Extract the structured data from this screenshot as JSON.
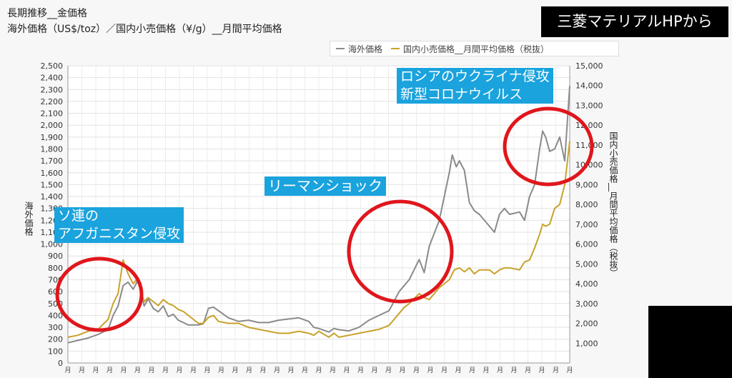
{
  "header": {
    "title": "長期推移__金価格",
    "subtitle": "海外価格（US$/toz）／国内小売価格（¥/g）__月間平均価格",
    "brand": "三菱マテリアルHPから"
  },
  "legend": [
    {
      "label": "海外価格",
      "color": "#8a8a8a"
    },
    {
      "label": "国内小売価格__月間平均価格（税抜）",
      "color": "#c8a22a"
    }
  ],
  "annotations": [
    {
      "lines": [
        "ソ連の",
        "アフガニスタン侵攻"
      ]
    },
    {
      "lines": [
        "リーマンショック"
      ]
    },
    {
      "lines": [
        "ロシアのウクライナ侵攻",
        "新型コロナウイルス"
      ]
    }
  ],
  "highlight_color": "#e0161c",
  "chart_data": {
    "type": "line",
    "ylabel": "海外価格",
    "y2label": "国内小売価格__月間平均価格（税抜）",
    "ylim": [
      0,
      2500
    ],
    "y2lim": [
      0,
      15000
    ],
    "yticks": [
      "0",
      "100",
      "200",
      "300",
      "400",
      "500",
      "600",
      "700",
      "800",
      "900",
      "1,000",
      "1,100",
      "1,200",
      "1,300",
      "1,400",
      "1,500",
      "1,600",
      "1,700",
      "1,800",
      "1,900",
      "2,000",
      "2,100",
      "2,200",
      "2,300",
      "2,400",
      "2,500"
    ],
    "y2ticks": [
      "1,000",
      "2,000",
      "3,000",
      "4,000",
      "5,000",
      "6,000",
      "7,000",
      "8,000",
      "9,000",
      "10,000",
      "11,000",
      "12,000",
      "13,000",
      "14,000",
      "15,000"
    ],
    "xlim": [
      1973,
      2023
    ],
    "xticks": [
      "月",
      "月",
      "月",
      "月",
      "月",
      "月",
      "月",
      "月",
      "月",
      "月",
      "月",
      "月",
      "月",
      "月",
      "月",
      "月",
      "月",
      "月",
      "月",
      "月",
      "月",
      "月",
      "月",
      "月",
      "月",
      "月",
      "月",
      "月",
      "月",
      "月",
      "月",
      "月",
      "月",
      "月",
      "月",
      "月",
      "月"
    ],
    "grid": true,
    "legend_position": "top-right",
    "series": [
      {
        "name": "海外価格",
        "axis": "left",
        "color": "#8a8a8a",
        "x": [
          1973,
          1974,
          1975,
          1976,
          1977,
          1977.5,
          1978,
          1978.5,
          1979,
          1979.5,
          1980,
          1980.3,
          1980.6,
          1981,
          1981.5,
          1982,
          1982.5,
          1983,
          1983.5,
          1984,
          1984.5,
          1985,
          1986,
          1986.5,
          1987,
          1987.5,
          1988,
          1989,
          1990,
          1991,
          1992,
          1993,
          1994,
          1995,
          1996,
          1997,
          1997.5,
          1998,
          1999,
          1999.5,
          2000,
          2001,
          2002,
          2003,
          2004,
          2005,
          2006,
          2006.5,
          2007,
          2008,
          2008.5,
          2009,
          2010,
          2011,
          2011.3,
          2011.7,
          2012,
          2012.5,
          2013,
          2013.5,
          2014,
          2015,
          2015.5,
          2016,
          2016.5,
          2017,
          2018,
          2018.5,
          2019,
          2019.5,
          2020,
          2020.3,
          2020.6,
          2021,
          2021.5,
          2022,
          2022.5,
          2023
        ],
        "values": [
          170,
          190,
          210,
          240,
          280,
          400,
          480,
          650,
          680,
          620,
          700,
          580,
          480,
          540,
          460,
          430,
          480,
          390,
          410,
          360,
          340,
          320,
          320,
          330,
          460,
          470,
          440,
          380,
          350,
          360,
          340,
          340,
          360,
          370,
          380,
          350,
          300,
          290,
          260,
          290,
          280,
          270,
          300,
          360,
          400,
          440,
          600,
          650,
          700,
          870,
          760,
          980,
          1200,
          1600,
          1750,
          1650,
          1700,
          1620,
          1350,
          1280,
          1250,
          1150,
          1100,
          1250,
          1300,
          1250,
          1270,
          1200,
          1400,
          1500,
          1800,
          1950,
          1900,
          1780,
          1800,
          1900,
          1700,
          2330
        ]
      },
      {
        "name": "国内小売価格__月間平均価格（税抜）",
        "axis": "right",
        "color": "#c8a22a",
        "x": [
          1973,
          1974,
          1975,
          1976,
          1977,
          1977.5,
          1978,
          1978.5,
          1979,
          1979.5,
          1980,
          1980.3,
          1980.6,
          1981,
          1981.5,
          1982,
          1982.5,
          1983,
          1983.5,
          1984,
          1984.5,
          1985,
          1986,
          1986.5,
          1987,
          1987.5,
          1988,
          1989,
          1990,
          1991,
          1992,
          1993,
          1994,
          1995,
          1996,
          1997,
          1997.5,
          1998,
          1999,
          1999.5,
          2000,
          2001,
          2002,
          2003,
          2004,
          2005,
          2006,
          2006.5,
          2007,
          2008,
          2008.5,
          2009,
          2010,
          2011,
          2011.5,
          2012,
          2012.5,
          2013,
          2013.5,
          2014,
          2015,
          2015.5,
          2016,
          2016.5,
          2017,
          2018,
          2018.5,
          2019,
          2019.5,
          2020,
          2020.3,
          2020.6,
          2021,
          2021.5,
          2022,
          2022.5,
          2023
        ],
        "values": [
          1300,
          1400,
          1600,
          1700,
          2200,
          3000,
          3500,
          5200,
          4500,
          4000,
          4300,
          3600,
          3100,
          3300,
          3100,
          2900,
          3200,
          3000,
          2900,
          2700,
          2600,
          2400,
          2000,
          2000,
          2300,
          2400,
          2100,
          2000,
          2000,
          1800,
          1700,
          1600,
          1500,
          1500,
          1600,
          1500,
          1400,
          1600,
          1300,
          1500,
          1300,
          1400,
          1500,
          1600,
          1700,
          1900,
          2500,
          2800,
          3000,
          3500,
          3300,
          3200,
          3800,
          4200,
          4700,
          4800,
          4600,
          4800,
          4500,
          4700,
          4700,
          4500,
          4700,
          4800,
          4800,
          4700,
          5100,
          5200,
          5800,
          6500,
          7000,
          6900,
          7000,
          7800,
          8000,
          9000,
          11200
        ]
      }
    ]
  }
}
